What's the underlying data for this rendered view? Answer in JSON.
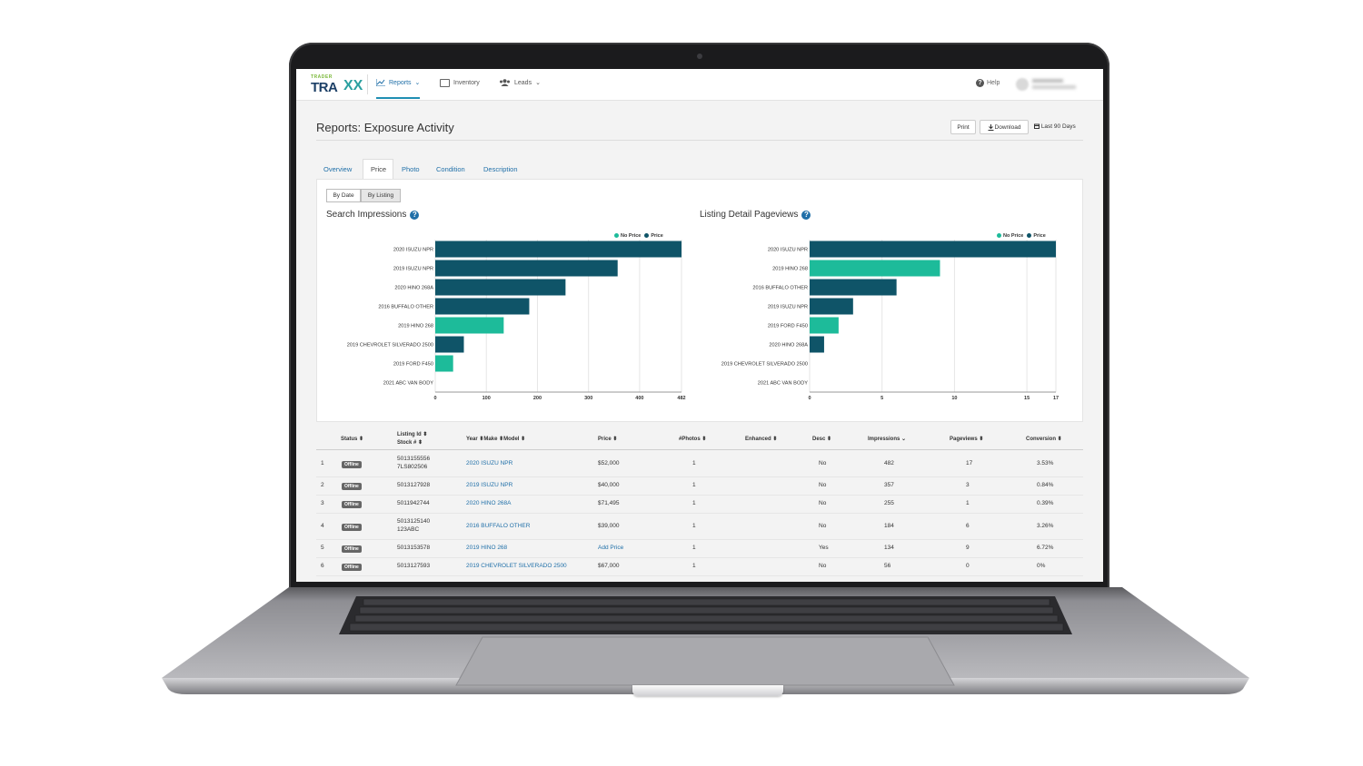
{
  "nav": {
    "logo_small": "TRADER",
    "logo_big": "TRA",
    "logo_x": "XX",
    "items": [
      {
        "label": "Reports",
        "caret": "⌄",
        "icon": "chart-icon",
        "active": true
      },
      {
        "label": "Inventory",
        "icon": "inventory-icon",
        "active": false
      },
      {
        "label": "Leads",
        "caret": "⌄",
        "icon": "users-icon",
        "active": false
      }
    ],
    "help_label": "Help"
  },
  "header": {
    "title": "Reports: Exposure Activity",
    "print_label": "Print",
    "download_label": "Download",
    "date_range": "Last 90 Days"
  },
  "tabs": [
    "Overview",
    "Price",
    "Photo",
    "Condition",
    "Description"
  ],
  "active_tab": "Price",
  "view_toggle": {
    "by_date": "By Date",
    "by_listing": "By Listing",
    "selected": "By Listing"
  },
  "colors": {
    "price": "#0f5468",
    "no_price": "#1dbb9a",
    "link": "#1f6fa8"
  },
  "legend": {
    "no_price": "No Price",
    "price": "Price"
  },
  "chart_data": [
    {
      "type": "bar",
      "orientation": "horizontal",
      "title": "Search Impressions",
      "categories": [
        "2020 ISUZU NPR",
        "2019 ISUZU NPR",
        "2020 HINO 268A",
        "2016 BUFFALO OTHER",
        "2019 HINO 268",
        "2019 CHEVROLET SILVERADO 2500",
        "2019 FORD F450",
        "2021 ABC VAN BODY"
      ],
      "values": [
        482,
        357,
        255,
        184,
        134,
        56,
        35,
        0
      ],
      "series_by_bar": [
        "Price",
        "Price",
        "Price",
        "Price",
        "No Price",
        "Price",
        "No Price",
        "Price"
      ],
      "xticks": [
        "0",
        "100",
        "200",
        "300",
        "400",
        "482"
      ],
      "xlim": [
        0,
        482
      ],
      "legend": [
        "No Price",
        "Price"
      ],
      "legend_position": "top-right",
      "grid": true
    },
    {
      "type": "bar",
      "orientation": "horizontal",
      "title": "Listing Detail Pageviews",
      "categories": [
        "2020 ISUZU NPR",
        "2019 HINO 268",
        "2016 BUFFALO OTHER",
        "2019 ISUZU NPR",
        "2019 FORD F450",
        "2020 HINO 268A",
        "2019 CHEVROLET SILVERADO 2500",
        "2021 ABC VAN BODY"
      ],
      "values": [
        17,
        9,
        6,
        3,
        2,
        1,
        0,
        0
      ],
      "series_by_bar": [
        "Price",
        "No Price",
        "Price",
        "Price",
        "No Price",
        "Price",
        "Price",
        "Price"
      ],
      "xticks": [
        "0",
        "5",
        "10",
        "15",
        "17"
      ],
      "xlim": [
        0,
        17
      ],
      "legend": [
        "No Price",
        "Price"
      ],
      "legend_position": "top-right",
      "grid": true
    }
  ],
  "table": {
    "headers": {
      "status": "Status",
      "listing_id": "Listing Id",
      "stock": "Stock #",
      "year": "Year",
      "make": "Make",
      "model": "Model",
      "price": "Price",
      "photos": "#Photos",
      "enhanced": "Enhanced",
      "desc": "Desc",
      "impressions": "Impressions",
      "pageviews": "Pageviews",
      "conversion": "Conversion"
    },
    "rows": [
      {
        "n": "1",
        "status": "Offline",
        "id": "5013155556",
        "stock": "7LS802506",
        "vehicle": "2020 ISUZU NPR",
        "price": "$52,000",
        "photos": "1",
        "desc": "No",
        "impressions": "482",
        "pageviews": "17",
        "conversion": "3.53%"
      },
      {
        "n": "2",
        "status": "Offline",
        "id": "5013127928",
        "stock": "",
        "vehicle": "2019 ISUZU NPR",
        "price": "$40,000",
        "photos": "1",
        "desc": "No",
        "impressions": "357",
        "pageviews": "3",
        "conversion": "0.84%"
      },
      {
        "n": "3",
        "status": "Offline",
        "id": "5011942744",
        "stock": "",
        "vehicle": "2020 HINO 268A",
        "price": "$71,495",
        "photos": "1",
        "desc": "No",
        "impressions": "255",
        "pageviews": "1",
        "conversion": "0.39%"
      },
      {
        "n": "4",
        "status": "Offline",
        "id": "5013125140",
        "stock": "123ABC",
        "vehicle": "2016 BUFFALO OTHER",
        "price": "$39,000",
        "photos": "1",
        "desc": "No",
        "impressions": "184",
        "pageviews": "6",
        "conversion": "3.26%"
      },
      {
        "n": "5",
        "status": "Offline",
        "id": "5013153578",
        "stock": "",
        "vehicle": "2019 HINO 268",
        "price": "Add Price",
        "photos": "1",
        "desc": "Yes",
        "impressions": "134",
        "pageviews": "9",
        "conversion": "6.72%"
      },
      {
        "n": "6",
        "status": "Offline",
        "id": "5013127593",
        "stock": "",
        "vehicle": "2019 CHEVROLET SILVERADO 2500",
        "price": "$67,000",
        "photos": "1",
        "desc": "No",
        "impressions": "56",
        "pageviews": "0",
        "conversion": "0%"
      }
    ]
  }
}
